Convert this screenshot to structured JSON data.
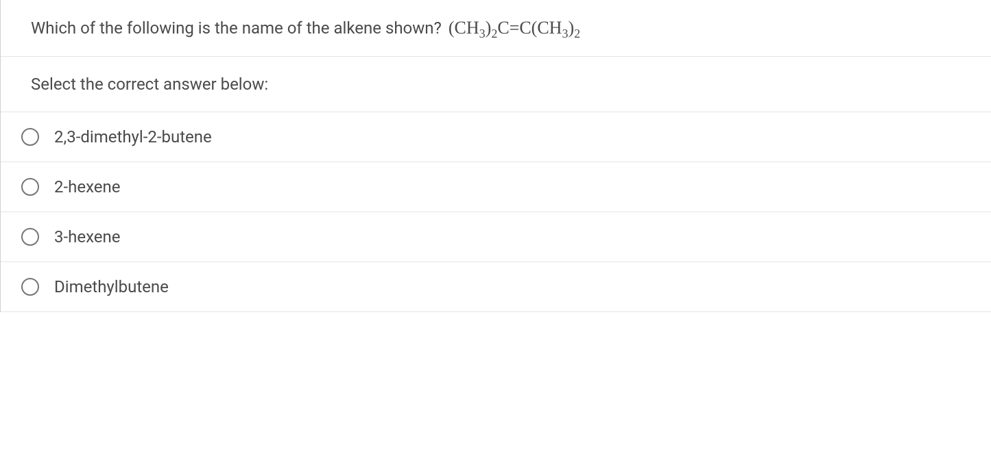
{
  "question": {
    "text": "Which of the following is the name of the alkene shown?",
    "formula_parts": {
      "p1": "(CH",
      "s1": "3",
      "p2": ")",
      "s2": "2",
      "p3": "C=C(CH",
      "s3": "3",
      "p4": ")",
      "s4": "2"
    }
  },
  "prompt": "Select the correct answer below:",
  "options": [
    {
      "label": "2,3-dimethyl-2-butene"
    },
    {
      "label": "2-hexene"
    },
    {
      "label": "3-hexene"
    },
    {
      "label": "Dimethylbutene"
    }
  ],
  "styles": {
    "text_color": "#4a4a4a",
    "border_color": "#e5e5e5",
    "radio_border_color": "#757575",
    "background_color": "#ffffff",
    "question_fontsize": 24,
    "formula_fontsize": 26,
    "option_fontsize": 24
  }
}
